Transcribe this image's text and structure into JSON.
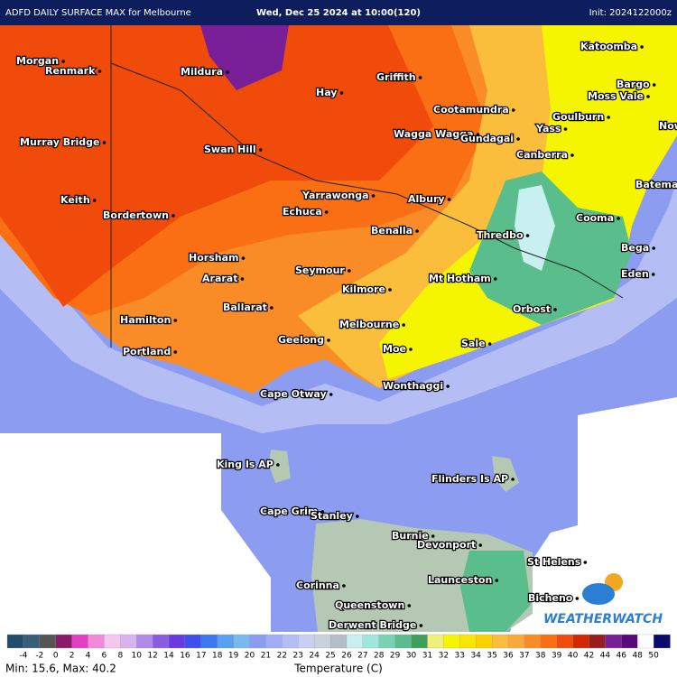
{
  "header": {
    "left": "ADFD DAILY SURFACE MAX for Melbourne",
    "center": "Wed, Dec 25 2024 at 10:00(120)",
    "right": "Init: 2024122000z"
  },
  "places": [
    {
      "name": "Morgan"
    },
    {
      "name": "Renmark"
    },
    {
      "name": "Mildura"
    },
    {
      "name": "Hay"
    },
    {
      "name": "Griffith"
    },
    {
      "name": "Katoomba"
    },
    {
      "name": "Bargo"
    },
    {
      "name": "Moss Vale"
    },
    {
      "name": "Goulburn"
    },
    {
      "name": "Yass"
    },
    {
      "name": "Nowra"
    },
    {
      "name": "Cootamundra"
    },
    {
      "name": "Wagga Wagga"
    },
    {
      "name": "Gundagai"
    },
    {
      "name": "Canberra"
    },
    {
      "name": "Murray Bridge"
    },
    {
      "name": "Swan Hill"
    },
    {
      "name": "Batemans Bay"
    },
    {
      "name": "Keith"
    },
    {
      "name": "Bordertown"
    },
    {
      "name": "Yarrawonga"
    },
    {
      "name": "Albury"
    },
    {
      "name": "Echuca"
    },
    {
      "name": "Cooma"
    },
    {
      "name": "Benalla"
    },
    {
      "name": "Thredbo"
    },
    {
      "name": "Bega"
    },
    {
      "name": "Horsham"
    },
    {
      "name": "Seymour"
    },
    {
      "name": "Eden"
    },
    {
      "name": "Ararat"
    },
    {
      "name": "Mt Hotham"
    },
    {
      "name": "Kilmore"
    },
    {
      "name": "Ballarat"
    },
    {
      "name": "Orbost"
    },
    {
      "name": "Hamilton"
    },
    {
      "name": "Melbourne"
    },
    {
      "name": "Geelong"
    },
    {
      "name": "Sale"
    },
    {
      "name": "Portland"
    },
    {
      "name": "Moe"
    },
    {
      "name": "Wonthaggi"
    },
    {
      "name": "Cape Otway"
    },
    {
      "name": "King Is AP"
    },
    {
      "name": "Flinders Is AP"
    },
    {
      "name": "Cape Grim"
    },
    {
      "name": "Stanley"
    },
    {
      "name": "Burnie"
    },
    {
      "name": "Devonport"
    },
    {
      "name": "St Helens"
    },
    {
      "name": "Launceston"
    },
    {
      "name": "Corinna"
    },
    {
      "name": "Bicheno"
    },
    {
      "name": "Queenstown"
    },
    {
      "name": "Derwent Bridge"
    }
  ],
  "logo": {
    "text": "WEATHERWATCH"
  },
  "colorbar": {
    "colors": [
      "#1f4e6e",
      "#3a5d78",
      "#555555",
      "#8b1a6b",
      "#e040c0",
      "#f08ad8",
      "#f5c6f0",
      "#d9b3f0",
      "#b38ae8",
      "#8c5ce0",
      "#6a3ae0",
      "#3c50f0",
      "#3c78f0",
      "#5aa0f0",
      "#7ab8f0",
      "#8c9cf0",
      "#a0aef5",
      "#b4bef5",
      "#c8cef5",
      "#c8d2dc",
      "#b4bec8",
      "#c8f0f0",
      "#a0e6dc",
      "#78d2b4",
      "#5abe8c",
      "#3ca05a",
      "#f0f078",
      "#f5f500",
      "#fae600",
      "#fad200",
      "#fabe3c",
      "#faaa3c",
      "#fa8c28",
      "#fa6e14",
      "#f04b0a",
      "#d22800",
      "#961e1e",
      "#781e96",
      "#5a0a78",
      "#ffffff",
      "#0a0a6e"
    ],
    "labels": [
      -4,
      -2,
      0,
      2,
      4,
      6,
      8,
      10,
      12,
      14,
      16,
      17,
      18,
      19,
      20,
      21,
      22,
      23,
      24,
      25,
      26,
      27,
      28,
      29,
      30,
      31,
      32,
      33,
      34,
      35,
      36,
      37,
      38,
      39,
      40,
      42,
      44,
      46,
      48,
      50
    ]
  },
  "footer": {
    "stats": "Min: 15.6, Max: 40.2",
    "axis_label": "Temperature (C)"
  }
}
